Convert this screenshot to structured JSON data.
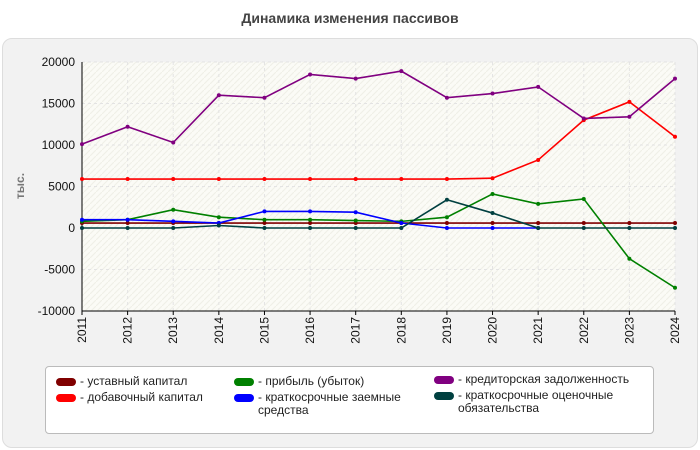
{
  "chart_data": {
    "type": "line",
    "title": "Динамика изменения пассивов",
    "ylabel": "тыс.",
    "xlabel": "",
    "ylim": [
      -10000,
      20000
    ],
    "yticks": [
      -10000,
      -5000,
      0,
      5000,
      10000,
      15000,
      20000
    ],
    "grid": true,
    "legend_position": "bottom",
    "categories": [
      "2011",
      "2012",
      "2013",
      "2014",
      "2015",
      "2016",
      "2017",
      "2018",
      "2019",
      "2020",
      "2021",
      "2022",
      "2023",
      "2024"
    ],
    "series": [
      {
        "name": "- уставный капитал",
        "color": "#800000",
        "values": [
          600,
          600,
          600,
          600,
          600,
          600,
          600,
          600,
          600,
          600,
          600,
          600,
          600,
          600
        ]
      },
      {
        "name": "- добавочный капитал",
        "color": "#ff0000",
        "values": [
          5900,
          5900,
          5900,
          5900,
          5900,
          5900,
          5900,
          5900,
          5900,
          6000,
          8200,
          13000,
          15200,
          11000
        ]
      },
      {
        "name": "- прибыль (убыток)",
        "color": "#008000",
        "values": [
          800,
          1000,
          2200,
          1300,
          1000,
          1000,
          900,
          800,
          1300,
          4100,
          2900,
          3500,
          -3700,
          -7200
        ]
      },
      {
        "name": "- краткосрочные заемные средства",
        "color": "#0000ff",
        "values": [
          1000,
          1000,
          800,
          600,
          2000,
          2000,
          1900,
          600,
          0,
          0,
          0,
          null,
          null,
          null
        ]
      },
      {
        "name": "- кредиторская задолженность",
        "color": "#800080",
        "values": [
          10100,
          12200,
          10300,
          16000,
          15700,
          18500,
          18000,
          18900,
          15700,
          16200,
          17000,
          13200,
          13400,
          18000
        ]
      },
      {
        "name": "- краткосрочные оценочные обязательства",
        "color": "#004040",
        "values": [
          0,
          0,
          0,
          300,
          0,
          0,
          0,
          0,
          3400,
          1800,
          0,
          0,
          0,
          0
        ]
      }
    ]
  }
}
